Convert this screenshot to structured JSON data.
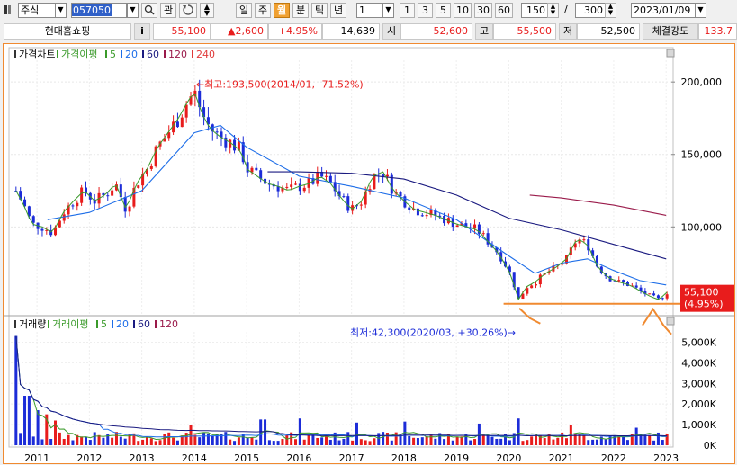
{
  "toolbar": {
    "market": "주식",
    "code": "057050",
    "search_label": "관",
    "periods": [
      "일",
      "주",
      "월",
      "분",
      "틱",
      "년"
    ],
    "selected_period": "월",
    "interval": "1",
    "quick_intervals": [
      "1",
      "3",
      "5",
      "10",
      "30",
      "60"
    ],
    "display_count": "150",
    "total_count": "300",
    "date": "2023/01/09"
  },
  "quote": {
    "name": "현대홈쇼핑",
    "info_label": "i",
    "price": "55,100",
    "change": "▲2,600",
    "change_pct": "+4.95%",
    "volume": "14,639",
    "open_label": "시",
    "open": "52,600",
    "high_label": "고",
    "high": "55,500",
    "low_label": "저",
    "low": "52,500",
    "strength_label": "체결강도",
    "strength": "133.7"
  },
  "colors": {
    "up": "#e81c1c",
    "down": "#1c2cd8",
    "ma5": "#3a9a2a",
    "ma20": "#1e6ee8",
    "ma60": "#1a1a80",
    "ma120": "#9a1a4a",
    "ma240": "#e03a3a",
    "support": "#f08a30",
    "frame": "#f08a30"
  },
  "chart_data": [
    {
      "type": "candlestick",
      "title": "가격차트",
      "legend": [
        {
          "name": "가격이평",
          "color": "#3a9a2a"
        },
        {
          "name": "5",
          "color": "#3a9a2a"
        },
        {
          "name": "20",
          "color": "#1e6ee8"
        },
        {
          "name": "60",
          "color": "#1a1a80"
        },
        {
          "name": "120",
          "color": "#9a1a4a"
        },
        {
          "name": "240",
          "color": "#e03a3a"
        }
      ],
      "y_ticks": [
        {
          "value": 200000,
          "label": "200,000"
        },
        {
          "value": 150000,
          "label": "150,000"
        },
        {
          "value": 100000,
          "label": "100,000"
        }
      ],
      "ylim": [
        40000,
        215000
      ],
      "x_ticks": [
        "2011",
        "2012",
        "2013",
        "2014",
        "2015",
        "2016",
        "2017",
        "2018",
        "2019",
        "2020",
        "2021",
        "2022",
        "2023"
      ],
      "x_range": [
        2010.5,
        2023.1
      ],
      "close_series": [
        [
          2010.6,
          125000
        ],
        [
          2010.75,
          115000
        ],
        [
          2010.9,
          102000
        ],
        [
          2011.1,
          100000
        ],
        [
          2011.3,
          96000
        ],
        [
          2011.5,
          110000
        ],
        [
          2011.7,
          118000
        ],
        [
          2011.9,
          125000
        ],
        [
          2012.1,
          118000
        ],
        [
          2012.3,
          122000
        ],
        [
          2012.5,
          130000
        ],
        [
          2012.7,
          112000
        ],
        [
          2012.9,
          130000
        ],
        [
          2013.1,
          140000
        ],
        [
          2013.3,
          155000
        ],
        [
          2013.5,
          165000
        ],
        [
          2013.7,
          175000
        ],
        [
          2013.85,
          185000
        ],
        [
          2014.0,
          193500
        ],
        [
          2014.15,
          178000
        ],
        [
          2014.3,
          168000
        ],
        [
          2014.5,
          162000
        ],
        [
          2014.7,
          158000
        ],
        [
          2014.9,
          152000
        ],
        [
          2015.0,
          140000
        ],
        [
          2015.2,
          135000
        ],
        [
          2015.4,
          130000
        ],
        [
          2015.6,
          128000
        ],
        [
          2015.8,
          125000
        ],
        [
          2016.0,
          128000
        ],
        [
          2016.2,
          130000
        ],
        [
          2016.4,
          135000
        ],
        [
          2016.6,
          130000
        ],
        [
          2016.8,
          120000
        ],
        [
          2017.0,
          112000
        ],
        [
          2017.2,
          118000
        ],
        [
          2017.4,
          135000
        ],
        [
          2017.6,
          138000
        ],
        [
          2017.8,
          125000
        ],
        [
          2018.0,
          118000
        ],
        [
          2018.2,
          112000
        ],
        [
          2018.4,
          110000
        ],
        [
          2018.6,
          108000
        ],
        [
          2018.8,
          105000
        ],
        [
          2019.0,
          102000
        ],
        [
          2019.2,
          100000
        ],
        [
          2019.4,
          98000
        ],
        [
          2019.6,
          90000
        ],
        [
          2019.8,
          82000
        ],
        [
          2020.0,
          70000
        ],
        [
          2020.1,
          60000
        ],
        [
          2020.2,
          48000
        ],
        [
          2020.3,
          58000
        ],
        [
          2020.5,
          62000
        ],
        [
          2020.7,
          68000
        ],
        [
          2020.9,
          72000
        ],
        [
          2021.1,
          78000
        ],
        [
          2021.3,
          92000
        ],
        [
          2021.5,
          88000
        ],
        [
          2021.7,
          72000
        ],
        [
          2021.9,
          65000
        ],
        [
          2022.1,
          62000
        ],
        [
          2022.3,
          60000
        ],
        [
          2022.5,
          56000
        ],
        [
          2022.7,
          52000
        ],
        [
          2022.85,
          50000
        ],
        [
          2022.95,
          52600
        ],
        [
          2023.02,
          55100
        ]
      ],
      "ma": [
        {
          "name": "20",
          "points": [
            [
              2011.2,
              105000
            ],
            [
              2012,
              110000
            ],
            [
              2013,
              125000
            ],
            [
              2014,
              165000
            ],
            [
              2014.5,
              170000
            ],
            [
              2015,
              155000
            ],
            [
              2016,
              135000
            ],
            [
              2017,
              128000
            ],
            [
              2018,
              120000
            ],
            [
              2019,
              105000
            ],
            [
              2020,
              80000
            ],
            [
              2020.5,
              68000
            ],
            [
              2021,
              75000
            ],
            [
              2021.5,
              78000
            ],
            [
              2022,
              70000
            ],
            [
              2022.5,
              63000
            ],
            [
              2023.0,
              60000
            ]
          ]
        },
        {
          "name": "60",
          "points": [
            [
              2015.4,
              138000
            ],
            [
              2016,
              138000
            ],
            [
              2017,
              137000
            ],
            [
              2018,
              133000
            ],
            [
              2019,
              122000
            ],
            [
              2020,
              106000
            ],
            [
              2021,
              98000
            ],
            [
              2022,
              88000
            ],
            [
              2023.0,
              78000
            ]
          ]
        },
        {
          "name": "120",
          "points": [
            [
              2020.4,
              122000
            ],
            [
              2021,
              120000
            ],
            [
              2022,
              115000
            ],
            [
              2023.0,
              108000
            ]
          ]
        }
      ],
      "annotations": [
        {
          "text": "←최고:193,500(2014/01,  -71.52%)",
          "x": 2014.0,
          "y": 193500
        },
        {
          "text": "최저:42,300(2020/03,  +30.26%)→",
          "x": 2020.2,
          "y": 42300
        }
      ],
      "price_badge": {
        "value": "55,100",
        "pct": "(4.95%)"
      }
    },
    {
      "type": "bar",
      "title": "거래량",
      "legend": [
        {
          "name": "거래이평",
          "color": "#3a9a2a"
        },
        {
          "name": "5",
          "color": "#3a9a2a"
        },
        {
          "name": "20",
          "color": "#1e6ee8"
        },
        {
          "name": "60",
          "color": "#1a1a80"
        },
        {
          "name": "120",
          "color": "#9a1a4a"
        }
      ],
      "y_ticks": [
        {
          "value": 5000,
          "label": "5,000K"
        },
        {
          "value": 4000,
          "label": "4,000K"
        },
        {
          "value": 3000,
          "label": "3,000K"
        },
        {
          "value": 2000,
          "label": "2,000K"
        },
        {
          "value": 1000,
          "label": "1,000K"
        },
        {
          "value": 0,
          "label": "0K"
        }
      ],
      "ylim": [
        0,
        5500
      ],
      "unit": "K",
      "highlights": [
        [
          2010.55,
          5300
        ],
        [
          2010.8,
          2400
        ],
        [
          2011.0,
          1700
        ],
        [
          2011.2,
          1500
        ],
        [
          2011.35,
          1200
        ],
        [
          2013.9,
          1000
        ],
        [
          2015.3,
          1250
        ],
        [
          2016.0,
          1300
        ],
        [
          2017.1,
          1100
        ],
        [
          2018.0,
          1150
        ],
        [
          2019.4,
          1050
        ],
        [
          2020.2,
          1300
        ],
        [
          2021.2,
          1000
        ],
        [
          2022.4,
          850
        ]
      ]
    }
  ]
}
